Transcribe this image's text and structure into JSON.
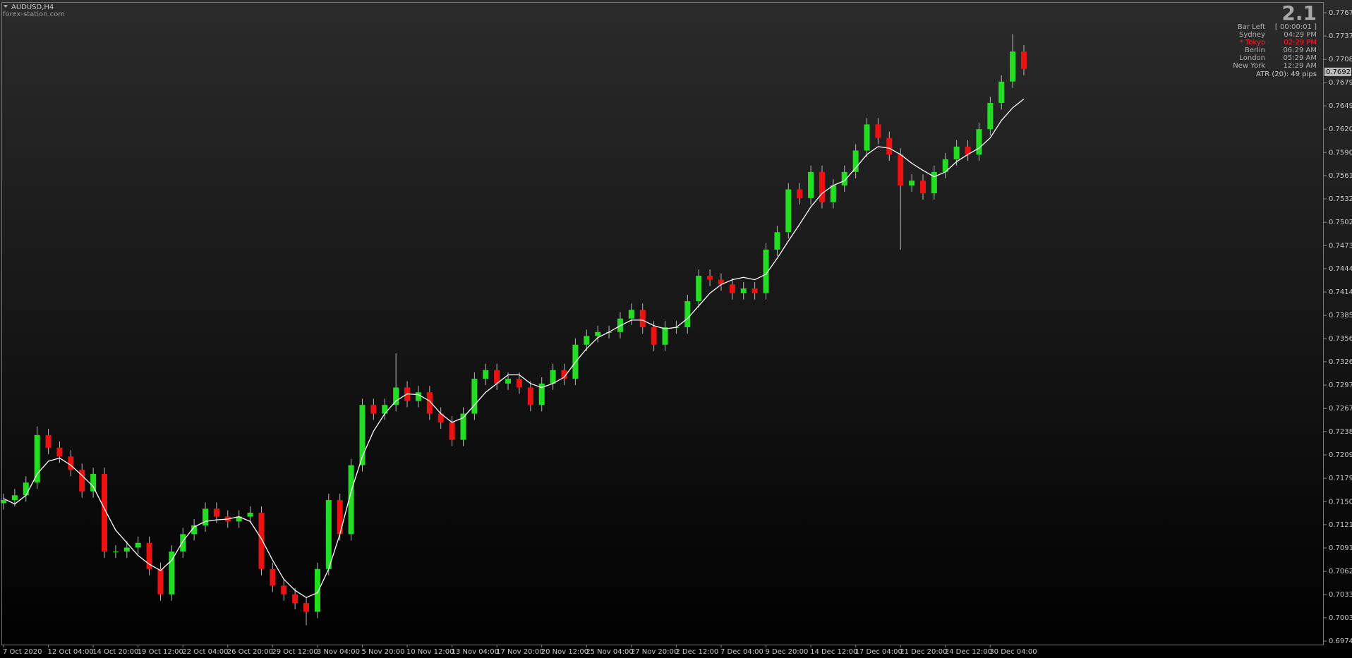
{
  "chart_data": {
    "type": "candlestick",
    "title": "AUDUSD,H4",
    "subtitle": "forex-station.com",
    "categories": [
      "7 Oct 2020",
      null,
      null,
      null,
      "12 Oct 04:00",
      null,
      null,
      null,
      "14 Oct 20:00",
      null,
      null,
      null,
      "19 Oct 12:00",
      null,
      null,
      null,
      "22 Oct 04:00",
      null,
      null,
      null,
      "26 Oct 20:00",
      null,
      null,
      null,
      "29 Oct 12:00",
      null,
      null,
      null,
      "3 Nov 04:00",
      null,
      null,
      null,
      "5 Nov 20:00",
      null,
      null,
      null,
      "10 Nov 12:00",
      null,
      null,
      null,
      "13 Nov 04:00",
      null,
      null,
      null,
      "17 Nov 20:00",
      null,
      null,
      null,
      "20 Nov 12:00",
      null,
      null,
      null,
      "25 Nov 04:00",
      null,
      null,
      null,
      "27 Nov 20:00",
      null,
      null,
      null,
      "2 Dec 12:00",
      null,
      null,
      null,
      "7 Dec 04:00",
      null,
      null,
      null,
      "9 Dec 20:00",
      null,
      null,
      null,
      "14 Dec 12:00",
      null,
      null,
      null,
      "17 Dec 04:00",
      null,
      null,
      null,
      "21 Dec 20:00",
      null,
      null,
      null,
      "24 Dec 12:00",
      null,
      null,
      null,
      "30 Dec 04:00",
      null,
      null,
      null
    ],
    "open": [
      0.7148,
      0.7152,
      0.7158,
      0.7174,
      0.7234,
      0.7218,
      0.7207,
      0.719,
      0.7163,
      0.7185,
      0.7087,
      0.7087,
      0.7092,
      0.7098,
      0.7065,
      0.7033,
      0.7087,
      0.7109,
      0.712,
      0.7141,
      0.7131,
      0.7125,
      0.7131,
      0.7136,
      0.7065,
      0.7044,
      0.7033,
      0.7022,
      0.7011,
      0.7065,
      0.7152,
      0.7109,
      0.7196,
      0.7272,
      0.7261,
      0.7272,
      0.7294,
      0.7277,
      0.7288,
      0.7261,
      0.725,
      0.7228,
      0.7261,
      0.7305,
      0.7316,
      0.7299,
      0.7305,
      0.7294,
      0.7272,
      0.7299,
      0.7316,
      0.7305,
      0.7348,
      0.7359,
      0.7364,
      0.7364,
      0.7381,
      0.7392,
      0.737,
      0.7348,
      0.737,
      0.737,
      0.7403,
      0.7435,
      0.743,
      0.7424,
      0.7413,
      0.7419,
      0.7413,
      0.7468,
      0.749,
      0.7544,
      0.7533,
      0.7566,
      0.7528,
      0.7549,
      0.7566,
      0.7593,
      0.7626,
      0.7609,
      0.7588,
      0.7549,
      0.7555,
      0.7539,
      0.7566,
      0.7582,
      0.7598,
      0.7588,
      0.762,
      0.7653,
      0.768,
      0.7718
    ],
    "high": [
      0.716,
      0.7166,
      0.7182,
      0.7245,
      0.7242,
      0.7226,
      0.7215,
      0.7198,
      0.7193,
      0.7193,
      0.7095,
      0.71,
      0.7106,
      0.7106,
      0.7073,
      0.7095,
      0.7117,
      0.7128,
      0.7149,
      0.7149,
      0.7139,
      0.7139,
      0.7144,
      0.7144,
      0.7073,
      0.7052,
      0.7041,
      0.703,
      0.7073,
      0.716,
      0.716,
      0.7204,
      0.728,
      0.728,
      0.728,
      0.7337,
      0.7302,
      0.7296,
      0.7296,
      0.7269,
      0.7258,
      0.7269,
      0.7313,
      0.7324,
      0.7324,
      0.7313,
      0.7313,
      0.7302,
      0.7307,
      0.7324,
      0.7324,
      0.7356,
      0.7367,
      0.7372,
      0.7372,
      0.7389,
      0.74,
      0.74,
      0.7378,
      0.7378,
      0.7378,
      0.7411,
      0.7443,
      0.7443,
      0.7438,
      0.7432,
      0.7427,
      0.7427,
      0.7476,
      0.7498,
      0.7552,
      0.7552,
      0.7574,
      0.7574,
      0.7557,
      0.7574,
      0.7601,
      0.7634,
      0.7634,
      0.7617,
      0.7596,
      0.7563,
      0.7563,
      0.7574,
      0.759,
      0.7606,
      0.7606,
      0.7628,
      0.7661,
      0.7688,
      0.774,
      0.7726
    ],
    "low": [
      0.714,
      0.7144,
      0.715,
      0.7166,
      0.721,
      0.7199,
      0.7182,
      0.7155,
      0.7155,
      0.7079,
      0.7079,
      0.7079,
      0.7084,
      0.7057,
      0.7025,
      0.7025,
      0.7079,
      0.7101,
      0.7112,
      0.7123,
      0.7117,
      0.7117,
      0.7123,
      0.7057,
      0.7036,
      0.7025,
      0.7014,
      0.6994,
      0.7003,
      0.7057,
      0.7101,
      0.7101,
      0.7188,
      0.7253,
      0.7253,
      0.7264,
      0.7269,
      0.7269,
      0.7253,
      0.7242,
      0.722,
      0.722,
      0.7253,
      0.7297,
      0.7291,
      0.7291,
      0.7286,
      0.7264,
      0.7264,
      0.7291,
      0.7297,
      0.7297,
      0.734,
      0.7351,
      0.7356,
      0.7356,
      0.7373,
      0.7362,
      0.734,
      0.734,
      0.7362,
      0.7362,
      0.7395,
      0.7422,
      0.7416,
      0.7405,
      0.7405,
      0.7405,
      0.7405,
      0.746,
      0.7482,
      0.7525,
      0.7525,
      0.752,
      0.752,
      0.7541,
      0.7558,
      0.7585,
      0.7601,
      0.758,
      0.7468,
      0.7541,
      0.7531,
      0.7531,
      0.7558,
      0.7574,
      0.758,
      0.758,
      0.7612,
      0.7645,
      0.7672,
      0.7688
    ],
    "close": [
      0.7152,
      0.7158,
      0.7174,
      0.7234,
      0.7218,
      0.7207,
      0.719,
      0.7163,
      0.7185,
      0.7087,
      0.7087,
      0.7092,
      0.7098,
      0.7065,
      0.7033,
      0.7087,
      0.7109,
      0.712,
      0.7141,
      0.7131,
      0.7125,
      0.7131,
      0.7136,
      0.7065,
      0.7044,
      0.7033,
      0.7022,
      0.7011,
      0.7065,
      0.7152,
      0.7109,
      0.7196,
      0.7272,
      0.7261,
      0.7272,
      0.7294,
      0.7277,
      0.7288,
      0.7261,
      0.725,
      0.7228,
      0.7261,
      0.7305,
      0.7316,
      0.7299,
      0.7305,
      0.7294,
      0.7272,
      0.7299,
      0.7316,
      0.7305,
      0.7348,
      0.7359,
      0.7364,
      0.7364,
      0.7381,
      0.7392,
      0.737,
      0.7348,
      0.737,
      0.737,
      0.7403,
      0.7435,
      0.743,
      0.7424,
      0.7413,
      0.7419,
      0.7413,
      0.7468,
      0.749,
      0.7544,
      0.7533,
      0.7566,
      0.7528,
      0.7549,
      0.7566,
      0.7593,
      0.7626,
      0.7609,
      0.7588,
      0.7549,
      0.7555,
      0.7539,
      0.7566,
      0.7582,
      0.7598,
      0.7588,
      0.762,
      0.7653,
      0.768,
      0.7718,
      0.7696
    ],
    "up_color": "#22dd22",
    "down_color": "#ee1111",
    "ma": {
      "color": "#ffffff",
      "values": [
        0.7154,
        0.7147,
        0.7158,
        0.7185,
        0.7201,
        0.7205,
        0.7196,
        0.7183,
        0.7169,
        0.7141,
        0.7114,
        0.7098,
        0.7082,
        0.7071,
        0.7063,
        0.7076,
        0.71,
        0.7118,
        0.7125,
        0.7127,
        0.7128,
        0.7131,
        0.7125,
        0.7103,
        0.7076,
        0.7052,
        0.7038,
        0.7029,
        0.7035,
        0.7065,
        0.7109,
        0.7163,
        0.7207,
        0.7239,
        0.7261,
        0.7277,
        0.7286,
        0.7285,
        0.7277,
        0.7261,
        0.725,
        0.7256,
        0.7272,
        0.7288,
        0.7299,
        0.731,
        0.731,
        0.7299,
        0.7294,
        0.7299,
        0.7307,
        0.7326,
        0.7343,
        0.7357,
        0.7364,
        0.7372,
        0.7379,
        0.7379,
        0.7372,
        0.7368,
        0.737,
        0.7381,
        0.7397,
        0.7413,
        0.7424,
        0.743,
        0.7433,
        0.743,
        0.7437,
        0.7457,
        0.7479,
        0.75,
        0.7522,
        0.7539,
        0.7549,
        0.7555,
        0.7571,
        0.7588,
        0.7598,
        0.7596,
        0.7588,
        0.7577,
        0.7568,
        0.756,
        0.7566,
        0.7579,
        0.7588,
        0.7596,
        0.7609,
        0.7631,
        0.7647,
        0.7658
      ]
    },
    "ylim": [
      0.69696,
      0.77803
    ],
    "yticks": [
      {
        "value": 0.7767,
        "label": "0.77670"
      },
      0.77375,
      {
        "value": 0.7708,
        "label": "0.77080"
      },
      {
        "value": 0.7679,
        "label": "0.76790"
      },
      0.76495,
      {
        "value": 0.762,
        "label": "0.76200"
      },
      0.75905,
      0.75615,
      {
        "value": 0.7532,
        "label": "0.75320"
      },
      0.75025,
      {
        "value": 0.7473,
        "label": "0.74730"
      },
      {
        "value": 0.7444,
        "label": "0.74440"
      },
      0.74145,
      {
        "value": 0.7385,
        "label": "0.73850"
      },
      {
        "value": 0.7356,
        "label": "0.73560"
      },
      0.73265,
      {
        "value": 0.7297,
        "label": "0.72970"
      },
      0.72675,
      0.72385,
      {
        "value": 0.7209,
        "label": "0.72090"
      },
      0.71795,
      {
        "value": 0.715,
        "label": "0.71500"
      },
      {
        "value": 0.7121,
        "label": "0.71210"
      },
      0.70915,
      {
        "value": 0.7062,
        "label": "0.70620"
      },
      {
        "value": 0.7033,
        "label": "0.70330"
      },
      0.70035,
      {
        "value": 0.6974,
        "label": "0.69740"
      }
    ],
    "last_price": 0.76923,
    "grid": false
  },
  "info_panel": {
    "version": "2.1",
    "rows": [
      {
        "label": "Bar Left",
        "value": "[ 00:00:01 ]",
        "color": "#b0b0b0"
      },
      {
        "label": "Sydney",
        "value": "04:29 PM",
        "color": "#b0b0b0"
      },
      {
        "label": "* Tokyo",
        "value": "02:29 PM",
        "color": "#ff2020"
      },
      {
        "label": "Berlin",
        "value": "06:29 AM",
        "color": "#b0b0b0"
      },
      {
        "label": "London",
        "value": "05:29 AM",
        "color": "#b0b0b0"
      },
      {
        "label": "New York",
        "value": "12:29 AM",
        "color": "#b0b0b0"
      }
    ],
    "atr": "ATR (20): 49 pips"
  }
}
